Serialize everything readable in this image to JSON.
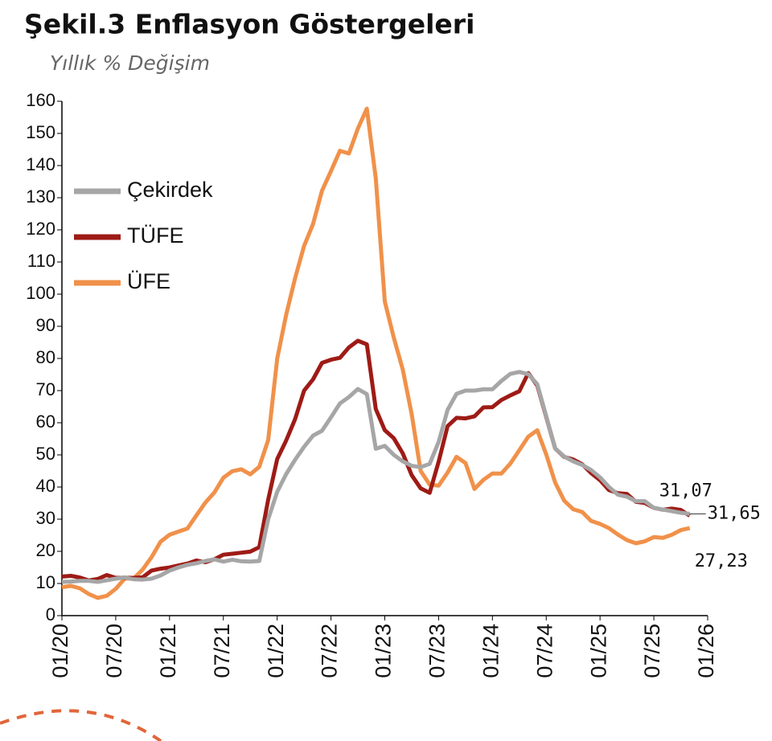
{
  "chart_data": {
    "type": "line",
    "title": "Şekil.3 Enflasyon Göstergeleri",
    "subtitle": "Yıllık % Değişim",
    "categories": [
      "01/20",
      null,
      null,
      null,
      null,
      null,
      "07/20",
      null,
      null,
      null,
      null,
      null,
      "01/21",
      null,
      null,
      null,
      null,
      null,
      "07/21",
      null,
      null,
      null,
      null,
      null,
      "01/22",
      null,
      null,
      null,
      null,
      null,
      "07/22",
      null,
      null,
      null,
      null,
      null,
      "01/23",
      null,
      null,
      null,
      null,
      null,
      "07/23",
      null,
      null,
      null,
      null,
      null,
      "01/24",
      null,
      null,
      null,
      null,
      null,
      "07/24",
      null,
      null,
      null,
      null,
      null,
      "01/25",
      null,
      null,
      null,
      null,
      null,
      "07/25",
      null,
      null,
      null,
      null,
      null,
      "01/26"
    ],
    "series": [
      {
        "name": "Çekirdek",
        "color": "#a6a6a6",
        "values": [
          10.5,
          10.6,
          10.8,
          10.8,
          10.5,
          11.0,
          11.5,
          11.9,
          11.3,
          11.2,
          11.5,
          12.5,
          14.0,
          15.0,
          15.8,
          16.3,
          17.0,
          17.5,
          16.8,
          17.4,
          16.9,
          16.8,
          17.0,
          30.0,
          38.5,
          44.0,
          48.5,
          52.5,
          56.0,
          57.5,
          61.7,
          66.0,
          68.0,
          70.5,
          68.9,
          51.9,
          52.8,
          50.0,
          48.0,
          46.6,
          46.2,
          47.2,
          54.0,
          64.0,
          69.0,
          70.0,
          70.0,
          70.4,
          70.4,
          73.0,
          75.2,
          75.8,
          75.1,
          72.0,
          62.0,
          52.0,
          49.5,
          48.0,
          46.9,
          45.3,
          43.0,
          40.0,
          37.6,
          37.0,
          35.6,
          35.6,
          33.5,
          33.0,
          32.5,
          32.0,
          31.65,
          null,
          null
        ],
        "value_labels": [
          null,
          null,
          null,
          null,
          null,
          null,
          null,
          null,
          null,
          null,
          null,
          null,
          null,
          null,
          null,
          null,
          null,
          null,
          null,
          null,
          null,
          null,
          null,
          null,
          null,
          null,
          null,
          null,
          null,
          null,
          null,
          null,
          null,
          null,
          null,
          null,
          null,
          null,
          null,
          null,
          null,
          null,
          null,
          null,
          null,
          null,
          null,
          null,
          null,
          null,
          null,
          null,
          null,
          null,
          null,
          null,
          null,
          null,
          null,
          null,
          null,
          null,
          null,
          null,
          null,
          null,
          null,
          null,
          null,
          null,
          "31,65",
          null,
          null
        ]
      },
      {
        "name": "TÜFE",
        "color": "#9e1b16",
        "values": [
          12.15,
          12.37,
          11.86,
          10.94,
          11.39,
          12.62,
          11.76,
          11.77,
          11.75,
          11.89,
          14.03,
          14.6,
          14.97,
          15.61,
          16.19,
          17.14,
          16.59,
          17.53,
          18.95,
          19.25,
          19.58,
          19.89,
          21.31,
          36.08,
          48.69,
          54.44,
          61.14,
          69.97,
          73.5,
          78.62,
          79.6,
          80.21,
          83.45,
          85.51,
          84.39,
          64.27,
          57.68,
          55.18,
          50.51,
          43.68,
          39.59,
          38.21,
          47.83,
          58.94,
          61.53,
          61.36,
          61.98,
          64.77,
          64.86,
          67.07,
          68.5,
          69.8,
          75.45,
          71.6,
          61.78,
          51.97,
          49.38,
          48.58,
          47.09,
          44.38,
          42.12,
          39.05,
          38.1,
          37.86,
          35.41,
          35.05,
          33.52,
          32.95,
          33.29,
          32.87,
          31.07,
          null,
          null
        ],
        "value_labels": [
          null,
          null,
          null,
          null,
          null,
          null,
          null,
          null,
          null,
          null,
          null,
          null,
          null,
          null,
          null,
          null,
          null,
          null,
          null,
          null,
          null,
          null,
          null,
          null,
          null,
          null,
          null,
          null,
          null,
          null,
          null,
          null,
          null,
          null,
          null,
          null,
          null,
          null,
          null,
          null,
          null,
          null,
          null,
          null,
          null,
          null,
          null,
          null,
          null,
          null,
          null,
          null,
          null,
          null,
          null,
          null,
          null,
          null,
          null,
          null,
          null,
          null,
          null,
          null,
          null,
          null,
          null,
          null,
          null,
          null,
          "31,07",
          null,
          null
        ]
      },
      {
        "name": "ÜFE",
        "color": "#f0914a",
        "values": [
          8.84,
          9.26,
          8.5,
          6.71,
          5.53,
          6.17,
          8.33,
          11.53,
          11.53,
          14.33,
          18.2,
          23.0,
          25.15,
          26.16,
          27.09,
          31.2,
          35.17,
          38.33,
          42.89,
          44.92,
          45.52,
          43.96,
          46.31,
          54.62,
          79.89,
          93.53,
          105.01,
          114.97,
          121.82,
          132.16,
          138.31,
          144.61,
          143.75,
          151.5,
          157.69,
          136.02,
          97.72,
          86.46,
          76.61,
          62.58,
          45.0,
          40.76,
          40.42,
          44.5,
          49.41,
          47.44,
          39.39,
          42.25,
          44.22,
          44.2,
          47.29,
          51.47,
          55.66,
          57.68,
          50.09,
          41.37,
          35.75,
          33.09,
          32.24,
          29.47,
          28.52,
          27.2,
          25.21,
          23.5,
          22.5,
          23.13,
          24.45,
          24.19,
          25.16,
          26.59,
          27.23,
          null,
          null
        ],
        "value_labels": [
          null,
          null,
          null,
          null,
          null,
          null,
          null,
          null,
          null,
          null,
          null,
          null,
          null,
          null,
          null,
          null,
          null,
          null,
          null,
          null,
          null,
          null,
          null,
          null,
          null,
          null,
          null,
          null,
          null,
          null,
          null,
          null,
          null,
          null,
          null,
          null,
          null,
          null,
          null,
          null,
          null,
          null,
          null,
          null,
          null,
          null,
          null,
          null,
          null,
          null,
          null,
          null,
          null,
          null,
          null,
          null,
          null,
          null,
          null,
          null,
          null,
          null,
          null,
          null,
          null,
          null,
          null,
          null,
          null,
          null,
          "27,23",
          null,
          null
        ]
      }
    ],
    "ylim": [
      0,
      160
    ],
    "yticks": [
      0,
      10,
      20,
      30,
      40,
      50,
      60,
      70,
      80,
      90,
      100,
      110,
      120,
      130,
      140,
      150,
      160
    ],
    "legend": "upper left"
  }
}
